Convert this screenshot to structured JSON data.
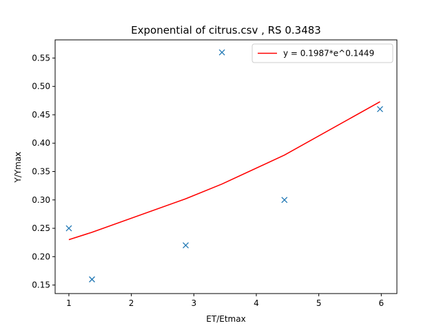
{
  "chart_data": {
    "type": "scatter",
    "title": "Exponential of citrus.csv , RS 0.3483",
    "xlabel": "ET/Etmax",
    "ylabel": "Y/Ymax",
    "xlim": [
      0.78,
      6.25
    ],
    "ylim": [
      0.135,
      0.582
    ],
    "xticks": [
      1,
      2,
      3,
      4,
      5,
      6
    ],
    "xtick_labels": [
      "1",
      "2",
      "3",
      "4",
      "5",
      "6"
    ],
    "yticks": [
      0.15,
      0.2,
      0.25,
      0.3,
      0.35,
      0.4,
      0.45,
      0.5,
      0.55
    ],
    "ytick_labels": [
      "0.15",
      "0.20",
      "0.25",
      "0.30",
      "0.35",
      "0.40",
      "0.45",
      "0.50",
      "0.55"
    ],
    "grid": false,
    "legend_position": "top-right",
    "colors": {
      "points": "#1f77b4",
      "fit": "#ff0000"
    },
    "series": [
      {
        "kind": "scatter",
        "marker": "x",
        "x": [
          1.0,
          1.37,
          2.87,
          3.45,
          4.45,
          5.98
        ],
        "y": [
          0.25,
          0.16,
          0.22,
          0.56,
          0.3,
          0.46
        ]
      },
      {
        "kind": "line",
        "name": "y = 0.1987*e^0.1449",
        "x": [
          1.0,
          1.37,
          2.87,
          3.45,
          4.45,
          5.98
        ],
        "y": [
          0.23,
          0.243,
          0.302,
          0.328,
          0.379,
          0.473
        ]
      }
    ]
  }
}
